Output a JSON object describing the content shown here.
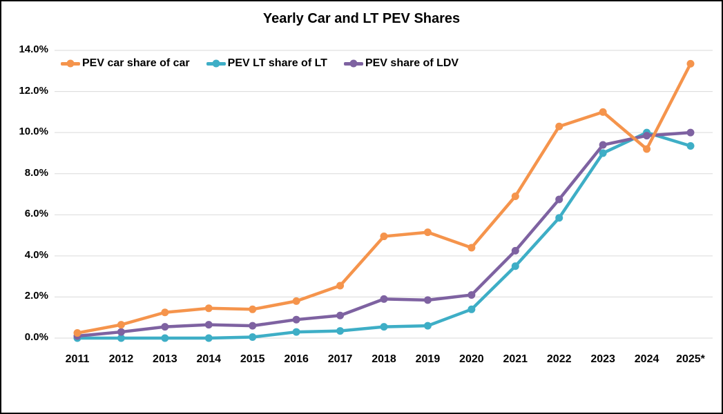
{
  "chart_data": {
    "type": "line",
    "title": "Yearly Car and LT PEV Shares",
    "categories": [
      "2011",
      "2012",
      "2013",
      "2014",
      "2015",
      "2016",
      "2017",
      "2018",
      "2019",
      "2020",
      "2021",
      "2022",
      "2023",
      "2024",
      "2025*"
    ],
    "y_ticks": [
      "0.0%",
      "2.0%",
      "4.0%",
      "6.0%",
      "8.0%",
      "10.0%",
      "12.0%",
      "14.0%"
    ],
    "ylim": [
      0,
      14
    ],
    "y_tick_step": 2,
    "grid": "horizontal",
    "legend_position": "top-left-inside",
    "colors": {
      "grid": "#D9D9D9",
      "text": "#000000",
      "background": "#FFFFFF",
      "border": "#000000"
    },
    "series": [
      {
        "name": "PEV car share of car",
        "color": "#F5944C",
        "values": [
          0.25,
          0.65,
          1.25,
          1.45,
          1.4,
          1.8,
          2.55,
          4.95,
          5.15,
          4.4,
          6.9,
          10.3,
          11.0,
          9.2,
          13.35
        ]
      },
      {
        "name": "PEV LT share of LT",
        "color": "#3EAEC6",
        "values": [
          0.0,
          0.0,
          0.0,
          0.0,
          0.05,
          0.3,
          0.35,
          0.55,
          0.6,
          1.4,
          3.5,
          5.85,
          9.0,
          10.0,
          9.35
        ]
      },
      {
        "name": "PEV share of LDV",
        "color": "#7E62A1",
        "values": [
          0.1,
          0.3,
          0.55,
          0.65,
          0.6,
          0.9,
          1.1,
          1.9,
          1.85,
          2.1,
          4.25,
          6.75,
          9.4,
          9.85,
          10.0
        ]
      }
    ],
    "draw_order": [
      1,
      2,
      0
    ]
  }
}
